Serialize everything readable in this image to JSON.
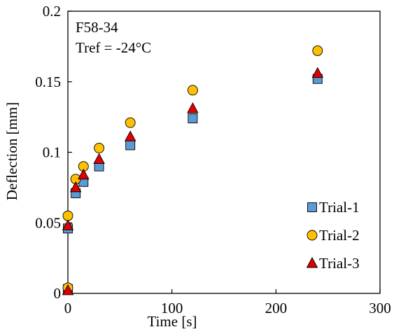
{
  "chart_data": {
    "type": "scatter",
    "annotations": [
      "F58-34",
      "Tref = -24°C"
    ],
    "xlabel": "Time [s]",
    "ylabel": "Deflection [mm]",
    "xlim": [
      0,
      300
    ],
    "ylim": [
      0,
      0.2
    ],
    "xticks": [
      0,
      100,
      200,
      300
    ],
    "xtick_labels": [
      "0",
      "100",
      "200",
      "300"
    ],
    "yticks": [
      0,
      0.05,
      0.1,
      0.15,
      0.2
    ],
    "ytick_labels": [
      "0",
      "0.05",
      "0.1",
      "0.15",
      "0.2"
    ],
    "grid": false,
    "legend_position": "bottom-right",
    "series": [
      {
        "name": "Trial-1",
        "marker": "square",
        "color": "#5B9BD5",
        "x": [
          0,
          0,
          7.5,
          15,
          30,
          60,
          120,
          240
        ],
        "y": [
          0.003,
          0.046,
          0.071,
          0.079,
          0.09,
          0.105,
          0.124,
          0.152
        ]
      },
      {
        "name": "Trial-2",
        "marker": "circle",
        "color": "#FFC000",
        "x": [
          0,
          0,
          7.5,
          15,
          30,
          60,
          120,
          240
        ],
        "y": [
          0.004,
          0.055,
          0.081,
          0.09,
          0.103,
          0.121,
          0.144,
          0.172
        ]
      },
      {
        "name": "Trial-3",
        "marker": "triangle",
        "color": "#E00000",
        "x": [
          0,
          0,
          7.5,
          15,
          30,
          60,
          120,
          240
        ],
        "y": [
          0.002,
          0.048,
          0.075,
          0.084,
          0.095,
          0.111,
          0.131,
          0.156
        ]
      }
    ]
  }
}
